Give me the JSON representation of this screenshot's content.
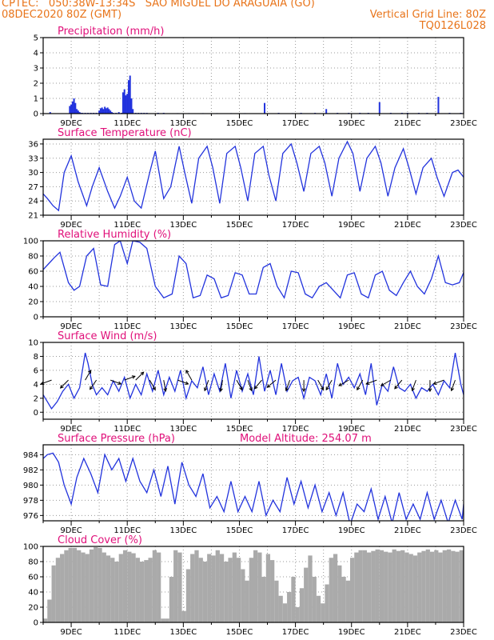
{
  "header": {
    "source_line": "CPTEC:   050:38W-13:34S   SAO MIGUEL DO ARAGUAIA (GO)",
    "date_line": "08DEC2020 80Z (GMT)",
    "grid_note": "Vertical Grid Line: 80Z",
    "product_code": "TQ0126L028"
  },
  "colors": {
    "header": "#e8741a",
    "title": "#e0107a",
    "line": "#2233dd",
    "cloud": "#aaaaaa"
  },
  "x_tick_labels": [
    "9DEC",
    "11DEC",
    "13DEC",
    "15DEC",
    "17DEC",
    "19DEC",
    "21DEC",
    "23DEC"
  ],
  "chart_data": [
    {
      "type": "bar",
      "title": "Precipitation (mm/h)",
      "x_range_days": [
        8.0,
        23.0
      ],
      "ylim": [
        0,
        5
      ],
      "yticks": [
        0,
        1,
        2,
        3,
        4,
        5
      ],
      "x": [
        8.25,
        8.95,
        9.0,
        9.05,
        9.1,
        9.15,
        9.2,
        9.25,
        9.3,
        9.35,
        9.4,
        9.5,
        9.6,
        9.7,
        9.8,
        9.9,
        10.0,
        10.05,
        10.1,
        10.15,
        10.2,
        10.25,
        10.3,
        10.35,
        10.4,
        10.45,
        10.5,
        10.6,
        10.7,
        10.8,
        10.85,
        10.9,
        10.95,
        11.0,
        11.05,
        11.1,
        11.15,
        11.2,
        11.3,
        11.4,
        11.5,
        11.6,
        11.7,
        12.1,
        12.3,
        12.8,
        13.2,
        13.7,
        14.2,
        14.7,
        15.2,
        15.9,
        16.4,
        16.9,
        17.2,
        17.7,
        18.1,
        18.5,
        18.9,
        19.3,
        19.6,
        20.0,
        20.4,
        20.8,
        21.0,
        21.4,
        21.7,
        22.1,
        22.5,
        22.9
      ],
      "values": [
        0.1,
        0.5,
        0.6,
        0.8,
        1.0,
        0.7,
        0.3,
        0.2,
        0.1,
        0.05,
        0.05,
        0.05,
        0.05,
        0.05,
        0.05,
        0.05,
        0.2,
        0.35,
        0.4,
        0.3,
        0.45,
        0.35,
        0.4,
        0.3,
        0.2,
        0.1,
        0.05,
        0.05,
        0.1,
        0.05,
        1.4,
        1.6,
        1.2,
        1.3,
        2.2,
        2.5,
        1.0,
        0.3,
        0.05,
        0.05,
        0.05,
        0.05,
        0.05,
        0.05,
        0.05,
        0.03,
        0.03,
        0.03,
        0.03,
        0.03,
        0.03,
        0.7,
        0.05,
        0.03,
        0.05,
        0.05,
        0.3,
        0.05,
        0.05,
        0.05,
        0.05,
        0.75,
        0.05,
        0.05,
        0.05,
        0.05,
        0.05,
        1.1,
        0.05,
        0.05
      ]
    },
    {
      "type": "line",
      "title": "Surface Temperature (nC)",
      "x_range_days": [
        8.0,
        23.0
      ],
      "ylim": [
        21,
        37
      ],
      "yticks": [
        21,
        24,
        27,
        30,
        33,
        36
      ],
      "x": [
        8.0,
        8.15,
        8.35,
        8.55,
        8.75,
        9.0,
        9.25,
        9.55,
        9.75,
        10.0,
        10.3,
        10.55,
        10.75,
        11.0,
        11.25,
        11.5,
        11.8,
        12.0,
        12.3,
        12.55,
        12.85,
        13.05,
        13.3,
        13.55,
        13.85,
        14.05,
        14.3,
        14.55,
        14.85,
        15.05,
        15.3,
        15.55,
        15.85,
        16.05,
        16.3,
        16.55,
        16.85,
        17.05,
        17.3,
        17.55,
        17.85,
        18.05,
        18.3,
        18.55,
        18.85,
        19.05,
        19.3,
        19.55,
        19.85,
        20.05,
        20.3,
        20.55,
        20.85,
        21.05,
        21.3,
        21.55,
        21.85,
        22.05,
        22.3,
        22.6,
        22.8,
        23.0
      ],
      "values": [
        25.5,
        24.5,
        23.0,
        22.0,
        30.0,
        33.5,
        28.0,
        23.0,
        27.0,
        31.0,
        26.0,
        22.5,
        25.0,
        29.0,
        24.0,
        22.5,
        30.0,
        34.5,
        24.5,
        27.0,
        35.5,
        30.0,
        23.5,
        33.0,
        35.5,
        31.0,
        23.5,
        34.0,
        35.5,
        31.0,
        24.0,
        34.0,
        35.5,
        29.5,
        24.0,
        34.0,
        36.0,
        32.0,
        26.0,
        34.0,
        35.5,
        32.0,
        25.0,
        33.0,
        36.5,
        34.0,
        26.0,
        33.0,
        35.5,
        32.0,
        25.0,
        31.0,
        35.0,
        31.0,
        25.5,
        31.0,
        33.0,
        29.0,
        25.0,
        30.0,
        30.5,
        29.0
      ]
    },
    {
      "type": "line",
      "title": "Relative Humidity (%)",
      "x_range_days": [
        8.0,
        23.0
      ],
      "ylim": [
        0,
        100
      ],
      "yticks": [
        0,
        20,
        40,
        60,
        80,
        100
      ],
      "x": [
        8.0,
        8.2,
        8.4,
        8.6,
        8.9,
        9.1,
        9.3,
        9.55,
        9.8,
        10.05,
        10.3,
        10.55,
        10.75,
        11.0,
        11.2,
        11.45,
        11.7,
        12.0,
        12.3,
        12.6,
        12.85,
        13.1,
        13.35,
        13.6,
        13.85,
        14.1,
        14.35,
        14.6,
        14.85,
        15.1,
        15.35,
        15.6,
        15.85,
        16.1,
        16.35,
        16.6,
        16.85,
        17.1,
        17.35,
        17.6,
        17.85,
        18.1,
        18.35,
        18.6,
        18.85,
        19.1,
        19.35,
        19.6,
        19.85,
        20.1,
        20.35,
        20.6,
        20.85,
        21.1,
        21.35,
        21.6,
        21.85,
        22.1,
        22.35,
        22.6,
        22.85,
        23.0
      ],
      "values": [
        62,
        70,
        78,
        85,
        45,
        35,
        40,
        80,
        90,
        42,
        40,
        95,
        100,
        70,
        100,
        98,
        90,
        40,
        25,
        30,
        80,
        70,
        25,
        28,
        55,
        50,
        25,
        28,
        58,
        55,
        30,
        30,
        65,
        70,
        40,
        25,
        60,
        58,
        30,
        25,
        40,
        45,
        35,
        25,
        55,
        58,
        30,
        25,
        55,
        60,
        35,
        28,
        45,
        60,
        40,
        30,
        50,
        80,
        45,
        42,
        45,
        58
      ]
    },
    {
      "type": "line",
      "title": "Surface Wind (m/s)",
      "x_range_days": [
        8.0,
        23.0
      ],
      "ylim": [
        -1,
        10
      ],
      "yticks": [
        0,
        2,
        4,
        6,
        8,
        10
      ],
      "x": [
        8.0,
        8.15,
        8.3,
        8.5,
        8.7,
        8.9,
        9.1,
        9.3,
        9.5,
        9.6,
        9.75,
        9.9,
        10.1,
        10.3,
        10.5,
        10.7,
        10.9,
        11.1,
        11.3,
        11.5,
        11.7,
        11.9,
        12.1,
        12.3,
        12.5,
        12.7,
        12.9,
        13.1,
        13.3,
        13.5,
        13.7,
        13.9,
        14.1,
        14.3,
        14.5,
        14.7,
        14.9,
        15.1,
        15.3,
        15.5,
        15.7,
        15.9,
        16.1,
        16.3,
        16.5,
        16.7,
        16.9,
        17.1,
        17.3,
        17.5,
        17.7,
        17.9,
        18.1,
        18.3,
        18.5,
        18.7,
        18.9,
        19.1,
        19.3,
        19.5,
        19.7,
        19.9,
        20.1,
        20.3,
        20.5,
        20.7,
        20.9,
        21.1,
        21.3,
        21.5,
        21.7,
        21.9,
        22.1,
        22.3,
        22.5,
        22.7,
        22.9,
        23.0
      ],
      "values": [
        2.5,
        1.5,
        0.5,
        1.5,
        3.0,
        4.0,
        2.0,
        3.5,
        8.5,
        7.0,
        4.0,
        2.5,
        3.5,
        2.5,
        4.5,
        3.0,
        5.0,
        2.0,
        4.0,
        2.5,
        5.5,
        3.0,
        6.0,
        2.5,
        5.0,
        3.0,
        6.0,
        2.0,
        4.5,
        3.5,
        6.5,
        2.5,
        5.5,
        3.0,
        7.0,
        2.0,
        6.0,
        3.0,
        5.5,
        2.5,
        8.0,
        3.0,
        6.0,
        2.5,
        7.0,
        3.0,
        4.5,
        5.0,
        2.0,
        5.0,
        4.5,
        2.5,
        5.5,
        2.0,
        7.0,
        4.0,
        5.0,
        3.5,
        5.5,
        2.5,
        7.0,
        1.0,
        4.0,
        3.0,
        6.5,
        3.5,
        3.0,
        4.0,
        2.0,
        3.5,
        3.0,
        4.0,
        2.5,
        4.5,
        3.5,
        8.5,
        4.0,
        2.5
      ],
      "arrow_x": [
        8.3,
        8.9,
        9.5,
        9.9,
        10.4,
        10.9,
        11.3,
        11.8,
        12.3,
        12.8,
        13.3,
        13.9,
        14.4,
        14.9,
        15.3,
        15.8,
        16.3,
        16.8,
        17.3,
        17.8,
        18.3,
        18.9,
        19.4,
        19.9,
        20.4,
        20.8,
        21.3,
        21.8,
        22.3,
        22.7
      ],
      "arrow_deg": [
        200,
        225,
        60,
        235,
        340,
        20,
        45,
        300,
        280,
        340,
        120,
        250,
        260,
        300,
        290,
        230,
        220,
        250,
        270,
        300,
        240,
        210,
        240,
        200,
        210,
        230,
        250,
        270,
        200,
        250
      ]
    },
    {
      "type": "line",
      "title": "Surface Pressure (hPa)",
      "note": "Model Altitude: 254.07 m",
      "x_range_days": [
        8.0,
        23.0
      ],
      "ylim": [
        975.3,
        985.3
      ],
      "yticks": [
        976,
        978,
        980,
        982,
        984
      ],
      "x": [
        8.0,
        8.15,
        8.35,
        8.55,
        8.75,
        9.0,
        9.2,
        9.45,
        9.7,
        9.95,
        10.2,
        10.45,
        10.7,
        10.95,
        11.2,
        11.45,
        11.7,
        11.95,
        12.2,
        12.45,
        12.7,
        12.95,
        13.2,
        13.45,
        13.7,
        13.95,
        14.2,
        14.45,
        14.7,
        14.95,
        15.2,
        15.45,
        15.7,
        15.95,
        16.2,
        16.45,
        16.7,
        16.95,
        17.2,
        17.45,
        17.7,
        17.95,
        18.2,
        18.45,
        18.7,
        18.95,
        19.2,
        19.45,
        19.7,
        19.95,
        20.2,
        20.45,
        20.7,
        20.95,
        21.2,
        21.45,
        21.7,
        21.95,
        22.2,
        22.45,
        22.7,
        22.95,
        23.0
      ],
      "values": [
        983.5,
        984.0,
        984.2,
        983.0,
        980.0,
        977.5,
        981.0,
        983.5,
        981.5,
        979.0,
        984.0,
        982.0,
        983.5,
        980.5,
        983.5,
        980.5,
        979.0,
        982.0,
        978.5,
        982.5,
        977.5,
        983.0,
        980.0,
        978.5,
        981.5,
        977.0,
        978.5,
        976.5,
        980.5,
        976.5,
        978.5,
        976.5,
        980.5,
        976.0,
        978.0,
        976.5,
        981.0,
        977.5,
        980.5,
        977.0,
        980.0,
        976.5,
        979.0,
        976.0,
        979.0,
        974.8,
        977.5,
        976.5,
        979.5,
        975.5,
        978.5,
        975.0,
        979.0,
        975.5,
        977.5,
        975.5,
        979.0,
        975.5,
        978.0,
        975.0,
        978.0,
        975.5,
        977.5
      ]
    },
    {
      "type": "bar",
      "title": "Cloud Cover (%)",
      "x_range_days": [
        8.0,
        23.0
      ],
      "ylim": [
        0,
        100
      ],
      "yticks": [
        0,
        20,
        40,
        60,
        80,
        100
      ],
      "x": [
        8.0,
        8.15,
        8.3,
        8.45,
        8.6,
        8.75,
        8.9,
        9.05,
        9.2,
        9.35,
        9.5,
        9.65,
        9.8,
        9.95,
        10.1,
        10.25,
        10.4,
        10.55,
        10.7,
        10.85,
        11.0,
        11.15,
        11.3,
        11.45,
        11.6,
        11.75,
        11.9,
        12.05,
        12.2,
        12.35,
        12.5,
        12.65,
        12.8,
        12.95,
        13.1,
        13.25,
        13.4,
        13.55,
        13.7,
        13.85,
        14.0,
        14.15,
        14.3,
        14.45,
        14.6,
        14.75,
        14.9,
        15.05,
        15.2,
        15.35,
        15.5,
        15.65,
        15.8,
        15.95,
        16.1,
        16.25,
        16.4,
        16.55,
        16.7,
        16.85,
        17.0,
        17.15,
        17.3,
        17.45,
        17.6,
        17.75,
        17.9,
        18.05,
        18.2,
        18.35,
        18.5,
        18.65,
        18.8,
        18.95,
        19.1,
        19.25,
        19.4,
        19.55,
        19.7,
        19.85,
        20.0,
        20.15,
        20.3,
        20.45,
        20.6,
        20.75,
        20.9,
        21.05,
        21.2,
        21.35,
        21.5,
        21.65,
        21.8,
        21.95,
        22.1,
        22.25,
        22.4,
        22.55,
        22.7,
        22.85
      ],
      "values": [
        5,
        30,
        75,
        85,
        90,
        95,
        98,
        98,
        95,
        92,
        90,
        96,
        99,
        98,
        92,
        88,
        85,
        80,
        90,
        95,
        93,
        91,
        85,
        80,
        82,
        85,
        95,
        92,
        5,
        5,
        60,
        95,
        92,
        15,
        70,
        90,
        95,
        85,
        80,
        90,
        88,
        95,
        90,
        80,
        85,
        92,
        85,
        70,
        55,
        85,
        95,
        92,
        60,
        90,
        82,
        55,
        35,
        25,
        40,
        60,
        20,
        45,
        72,
        88,
        60,
        35,
        25,
        50,
        85,
        90,
        75,
        60,
        55,
        85,
        92,
        95,
        95,
        92,
        94,
        96,
        95,
        93,
        92,
        96,
        94,
        95,
        92,
        90,
        88,
        92,
        94,
        96,
        93,
        95,
        92,
        95,
        96,
        94,
        93,
        95
      ]
    }
  ]
}
